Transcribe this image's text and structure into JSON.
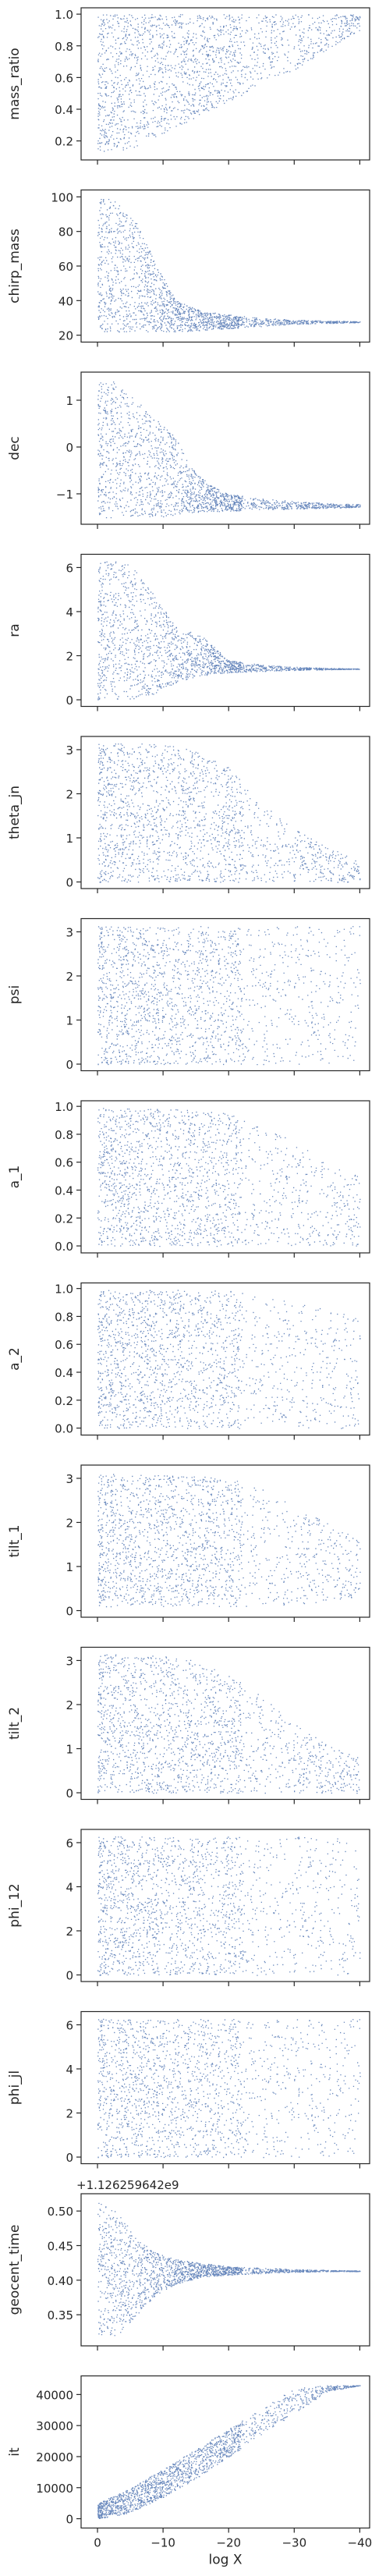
{
  "figure": {
    "xlabel": "log X",
    "xlim": [
      2.5,
      -41.5
    ],
    "xticks": [
      0,
      -10,
      -20,
      -30,
      -40
    ],
    "xtick_labels": [
      "0",
      "−10",
      "−20",
      "−30",
      "−40"
    ],
    "marker_color": "#4c72b0",
    "grid": false
  },
  "chart_data": [
    {
      "type": "scatter",
      "ylabel": "mass_ratio",
      "ylim": [
        0.08,
        1.04
      ],
      "yticks": [
        0.2,
        0.4,
        0.6,
        0.8,
        1.0
      ],
      "ytick_labels": [
        "0.2",
        "0.4",
        "0.6",
        "0.8",
        "1.0"
      ],
      "trend": {
        "x": [
          0,
          -5,
          -10,
          -15,
          -20,
          -25,
          -30,
          -35,
          -40
        ],
        "low": [
          0.13,
          0.15,
          0.25,
          0.35,
          0.45,
          0.55,
          0.65,
          0.78,
          0.9
        ],
        "high": [
          1.0,
          1.0,
          1.0,
          1.0,
          1.0,
          1.0,
          1.0,
          1.0,
          1.0
        ]
      }
    },
    {
      "type": "scatter",
      "ylabel": "chirp_mass",
      "ylim": [
        16,
        104
      ],
      "yticks": [
        20,
        40,
        60,
        80,
        100
      ],
      "ytick_labels": [
        "20",
        "40",
        "60",
        "80",
        "100"
      ],
      "trend": {
        "x": [
          0,
          -3,
          -6,
          -9,
          -12,
          -16,
          -20,
          -25,
          -30,
          -35,
          -40
        ],
        "low": [
          22,
          22,
          22,
          22,
          22,
          23,
          24,
          25,
          26.5,
          27,
          27.5
        ],
        "high": [
          100,
          98,
          85,
          60,
          40,
          34,
          32,
          30,
          29,
          28.5,
          28
        ]
      }
    },
    {
      "type": "scatter",
      "ylabel": "dec",
      "ylim": [
        -1.65,
        1.6
      ],
      "yticks": [
        -1,
        0,
        1
      ],
      "ytick_labels": [
        "−1",
        "0",
        "1"
      ],
      "trend": {
        "x": [
          0,
          -3,
          -6,
          -9,
          -12,
          -14,
          -17,
          -20,
          -25,
          -30,
          -35,
          -40
        ],
        "low": [
          -1.5,
          -1.5,
          -1.5,
          -1.5,
          -1.45,
          -1.4,
          -1.38,
          -1.36,
          -1.34,
          -1.32,
          -1.3,
          -1.28
        ],
        "high": [
          1.4,
          1.4,
          1.0,
          0.6,
          0.2,
          -0.4,
          -0.8,
          -1.0,
          -1.1,
          -1.15,
          -1.2,
          -1.22
        ]
      }
    },
    {
      "type": "scatter",
      "ylabel": "ra",
      "ylim": [
        -0.3,
        6.6
      ],
      "yticks": [
        0,
        2,
        4,
        6
      ],
      "ytick_labels": [
        "0",
        "2",
        "4",
        "6"
      ],
      "trend": {
        "x": [
          0,
          -5,
          -8,
          -12,
          -16,
          -20,
          -25,
          -30,
          -35,
          -40
        ],
        "low": [
          0.0,
          0.0,
          0.2,
          0.8,
          1.1,
          1.25,
          1.3,
          1.35,
          1.38,
          1.4
        ],
        "high": [
          6.28,
          6.28,
          5.0,
          3.3,
          2.9,
          1.8,
          1.6,
          1.5,
          1.45,
          1.42
        ]
      }
    },
    {
      "type": "scatter",
      "ylabel": "theta_jn",
      "ylim": [
        -0.15,
        3.3
      ],
      "yticks": [
        0,
        1,
        2,
        3
      ],
      "ytick_labels": [
        "0",
        "1",
        "2",
        "3"
      ],
      "trend": {
        "x": [
          0,
          -5,
          -10,
          -15,
          -20,
          -25,
          -30,
          -35,
          -40
        ],
        "low": [
          0.0,
          0.0,
          0.0,
          0.0,
          0.0,
          0.0,
          0.0,
          0.0,
          0.0
        ],
        "high": [
          3.14,
          3.14,
          3.14,
          3.0,
          2.6,
          1.8,
          1.2,
          0.8,
          0.5
        ]
      }
    },
    {
      "type": "scatter",
      "ylabel": "psi",
      "ylim": [
        -0.15,
        3.3
      ],
      "yticks": [
        0,
        1,
        2,
        3
      ],
      "ytick_labels": [
        "0",
        "1",
        "2",
        "3"
      ],
      "trend": {
        "x": [
          0,
          -10,
          -20,
          -30,
          -40
        ],
        "low": [
          0,
          0,
          0,
          0,
          0
        ],
        "high": [
          3.14,
          3.14,
          3.14,
          3.14,
          3.14
        ]
      }
    },
    {
      "type": "scatter",
      "ylabel": "a_1",
      "ylim": [
        -0.05,
        1.04
      ],
      "yticks": [
        0.0,
        0.2,
        0.4,
        0.6,
        0.8,
        1.0
      ],
      "ytick_labels": [
        "0.0",
        "0.2",
        "0.4",
        "0.6",
        "0.8",
        "1.0"
      ],
      "trend": {
        "x": [
          0,
          -10,
          -20,
          -25,
          -30,
          -35,
          -40
        ],
        "low": [
          0,
          0,
          0,
          0,
          0,
          0,
          0
        ],
        "high": [
          0.99,
          0.99,
          0.95,
          0.85,
          0.75,
          0.6,
          0.5
        ]
      }
    },
    {
      "type": "scatter",
      "ylabel": "a_2",
      "ylim": [
        -0.05,
        1.04
      ],
      "yticks": [
        0.0,
        0.2,
        0.4,
        0.6,
        0.8,
        1.0
      ],
      "ytick_labels": [
        "0.0",
        "0.2",
        "0.4",
        "0.6",
        "0.8",
        "1.0"
      ],
      "trend": {
        "x": [
          0,
          -10,
          -20,
          -30,
          -40
        ],
        "low": [
          0,
          0,
          0,
          0,
          0
        ],
        "high": [
          0.99,
          0.99,
          0.99,
          0.9,
          0.8
        ]
      }
    },
    {
      "type": "scatter",
      "ylabel": "tilt_1",
      "ylim": [
        -0.15,
        3.3
      ],
      "yticks": [
        0,
        1,
        2,
        3
      ],
      "ytick_labels": [
        "0",
        "1",
        "2",
        "3"
      ],
      "trend": {
        "x": [
          0,
          -10,
          -20,
          -25,
          -30,
          -35,
          -40
        ],
        "low": [
          0.1,
          0.1,
          0.1,
          0.1,
          0.1,
          0.2,
          0.3
        ],
        "high": [
          3.1,
          3.1,
          3.0,
          2.8,
          2.4,
          2.0,
          1.6
        ]
      }
    },
    {
      "type": "scatter",
      "ylabel": "tilt_2",
      "ylim": [
        -0.15,
        3.3
      ],
      "yticks": [
        0,
        1,
        2,
        3
      ],
      "ytick_labels": [
        "0",
        "1",
        "2",
        "3"
      ],
      "trend": {
        "x": [
          0,
          -5,
          -10,
          -15,
          -20,
          -25,
          -30,
          -35,
          -40
        ],
        "low": [
          0.0,
          0.0,
          0.0,
          0.0,
          0.0,
          0.0,
          0.0,
          0.0,
          0.0
        ],
        "high": [
          3.14,
          3.14,
          3.1,
          3.0,
          2.7,
          2.2,
          1.6,
          1.1,
          0.8
        ]
      }
    },
    {
      "type": "scatter",
      "ylabel": "phi_12",
      "ylim": [
        -0.3,
        6.6
      ],
      "yticks": [
        0,
        2,
        4,
        6
      ],
      "ytick_labels": [
        "0",
        "2",
        "4",
        "6"
      ],
      "trend": {
        "x": [
          0,
          -10,
          -20,
          -30,
          -40
        ],
        "low": [
          0,
          0,
          0,
          0,
          0
        ],
        "high": [
          6.28,
          6.28,
          6.28,
          6.28,
          6.28
        ]
      }
    },
    {
      "type": "scatter",
      "ylabel": "phi_jl",
      "ylim": [
        -0.3,
        6.6
      ],
      "yticks": [
        0,
        2,
        4,
        6
      ],
      "ytick_labels": [
        "0",
        "2",
        "4",
        "6"
      ],
      "trend": {
        "x": [
          0,
          -10,
          -20,
          -30,
          -40
        ],
        "low": [
          0,
          0,
          0,
          0,
          0
        ],
        "high": [
          6.28,
          6.28,
          6.28,
          6.28,
          6.28
        ]
      }
    },
    {
      "type": "scatter",
      "ylabel": "geocent_time",
      "offset_text": "+1.126259642e9",
      "ylim": [
        0.305,
        0.525
      ],
      "yticks": [
        0.35,
        0.4,
        0.45,
        0.5
      ],
      "ytick_labels": [
        "0.35",
        "0.40",
        "0.45",
        "0.50"
      ],
      "trend": {
        "x": [
          0,
          -3,
          -6,
          -9,
          -12,
          -16,
          -20,
          -25,
          -30,
          -35,
          -40
        ],
        "low": [
          0.32,
          0.32,
          0.35,
          0.38,
          0.395,
          0.405,
          0.408,
          0.41,
          0.412,
          0.413,
          0.413
        ],
        "high": [
          0.515,
          0.5,
          0.46,
          0.44,
          0.43,
          0.425,
          0.42,
          0.418,
          0.416,
          0.415,
          0.414
        ]
      }
    },
    {
      "type": "scatter",
      "ylabel": "it",
      "ylim": [
        -3000,
        46000
      ],
      "yticks": [
        0,
        10000,
        20000,
        30000,
        40000
      ],
      "ytick_labels": [
        "0",
        "10000",
        "20000",
        "30000",
        "40000"
      ],
      "trend": {
        "x": [
          0,
          -5,
          -10,
          -15,
          -20,
          -25,
          -30,
          -35,
          -40
        ],
        "low": [
          0,
          2000,
          7000,
          13000,
          20000,
          27000,
          34000,
          41000,
          43000
        ],
        "high": [
          5000,
          10000,
          16000,
          22500,
          29000,
          35500,
          42000,
          43000,
          43000
        ]
      }
    }
  ]
}
